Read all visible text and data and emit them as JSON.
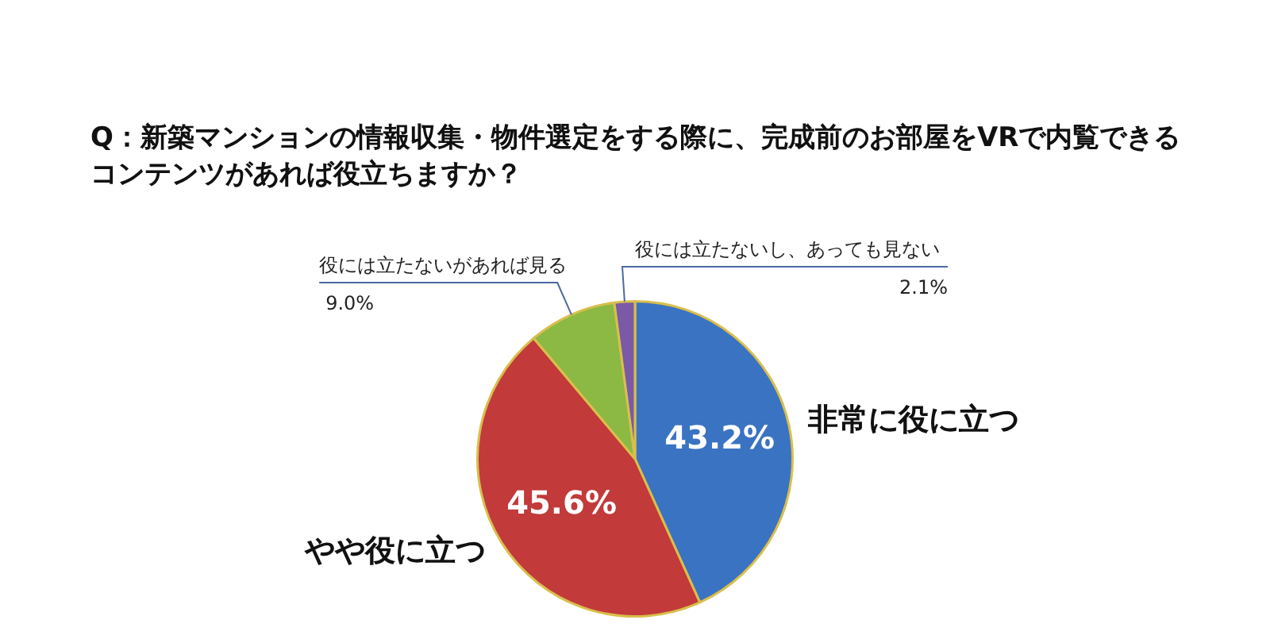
{
  "chart_data": {
    "type": "pie",
    "title": "Q：新築マンションの情報収集・物件選定をする際に、完成前のお部屋をVRで内覧できるコンテンツがあれば役立ちますか？",
    "categories": [
      "非常に役に立つ",
      "やや役に立つ",
      "役には立たないがあれば見る",
      "役には立たないし、あっても見ない"
    ],
    "values": [
      43.2,
      45.6,
      9.0,
      2.1
    ],
    "value_labels": [
      "43.2%",
      "45.6%",
      "9.0%",
      "2.1%"
    ],
    "colors": [
      "#3a73c2",
      "#c23a3a",
      "#8cb844",
      "#7a5aa6"
    ],
    "legend": false
  }
}
